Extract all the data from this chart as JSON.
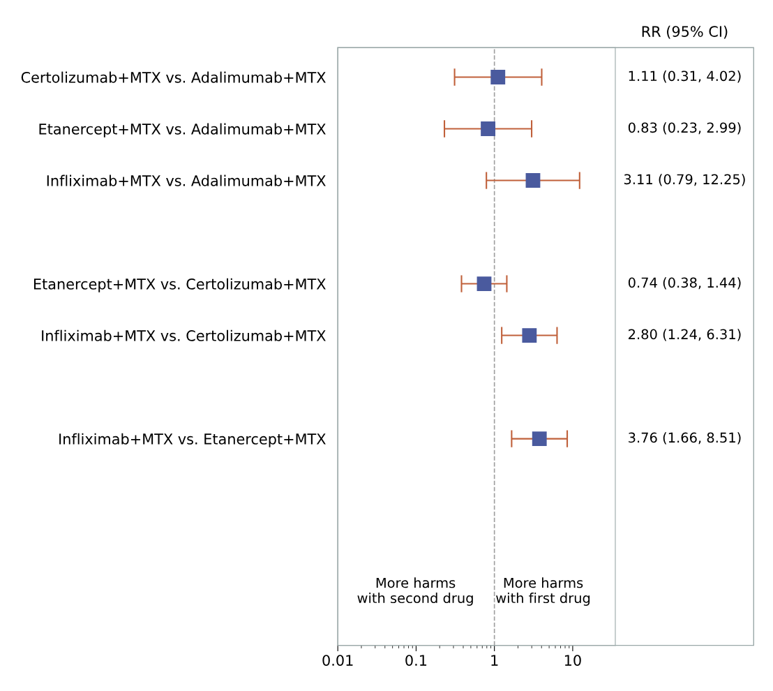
{
  "chart_data": {
    "type": "scatter",
    "orientation": "horizontal",
    "categories": [
      "Certolizumab+MTX vs. Adalimumab+MTX",
      "Etanercept+MTX vs. Adalimumab+MTX",
      "Infliximab+MTX vs. Adalimumab+MTX",
      null,
      "Etanercept+MTX vs. Certolizumab+MTX",
      "Infliximab+MTX vs. Certolizumab+MTX",
      null,
      "Infliximab+MTX vs. Etanercept+MTX",
      null,
      null,
      null
    ],
    "series": [
      {
        "color": "#4a5a9e",
        "values": [
          1.11,
          0.83,
          3.11,
          null,
          0.74,
          2.8,
          null,
          3.76,
          null,
          null,
          null
        ],
        "errors": [
          [
            0.31,
            4.02
          ],
          [
            0.23,
            2.99
          ],
          [
            0.79,
            12.25
          ],
          null,
          [
            0.38,
            1.44
          ],
          [
            1.24,
            6.31
          ],
          null,
          [
            1.66,
            8.51
          ],
          null,
          null,
          null
        ],
        "value_labels": [
          "1.11 (0.31, 4.02)",
          "0.83 (0.23, 2.99)",
          "3.11 (0.79, 12.25)",
          null,
          "0.74 (0.38, 1.44)",
          "2.80 (1.24, 6.31)",
          null,
          "3.76 (1.66, 8.51)",
          null,
          null,
          null
        ]
      }
    ],
    "marker": "square",
    "log": "x",
    "xlim": [
      0.01,
      35
    ],
    "xticks": [
      0.01,
      0.1,
      1,
      10
    ],
    "ref_lines": [
      {
        "axis": "x",
        "value": 1,
        "color": "#a0a0a0",
        "line_style": "dashed"
      }
    ],
    "annotations": [
      "RR (95% CI)",
      "More harms\nwith second drug",
      "More harms\nwith first drug"
    ],
    "grid": false
  }
}
